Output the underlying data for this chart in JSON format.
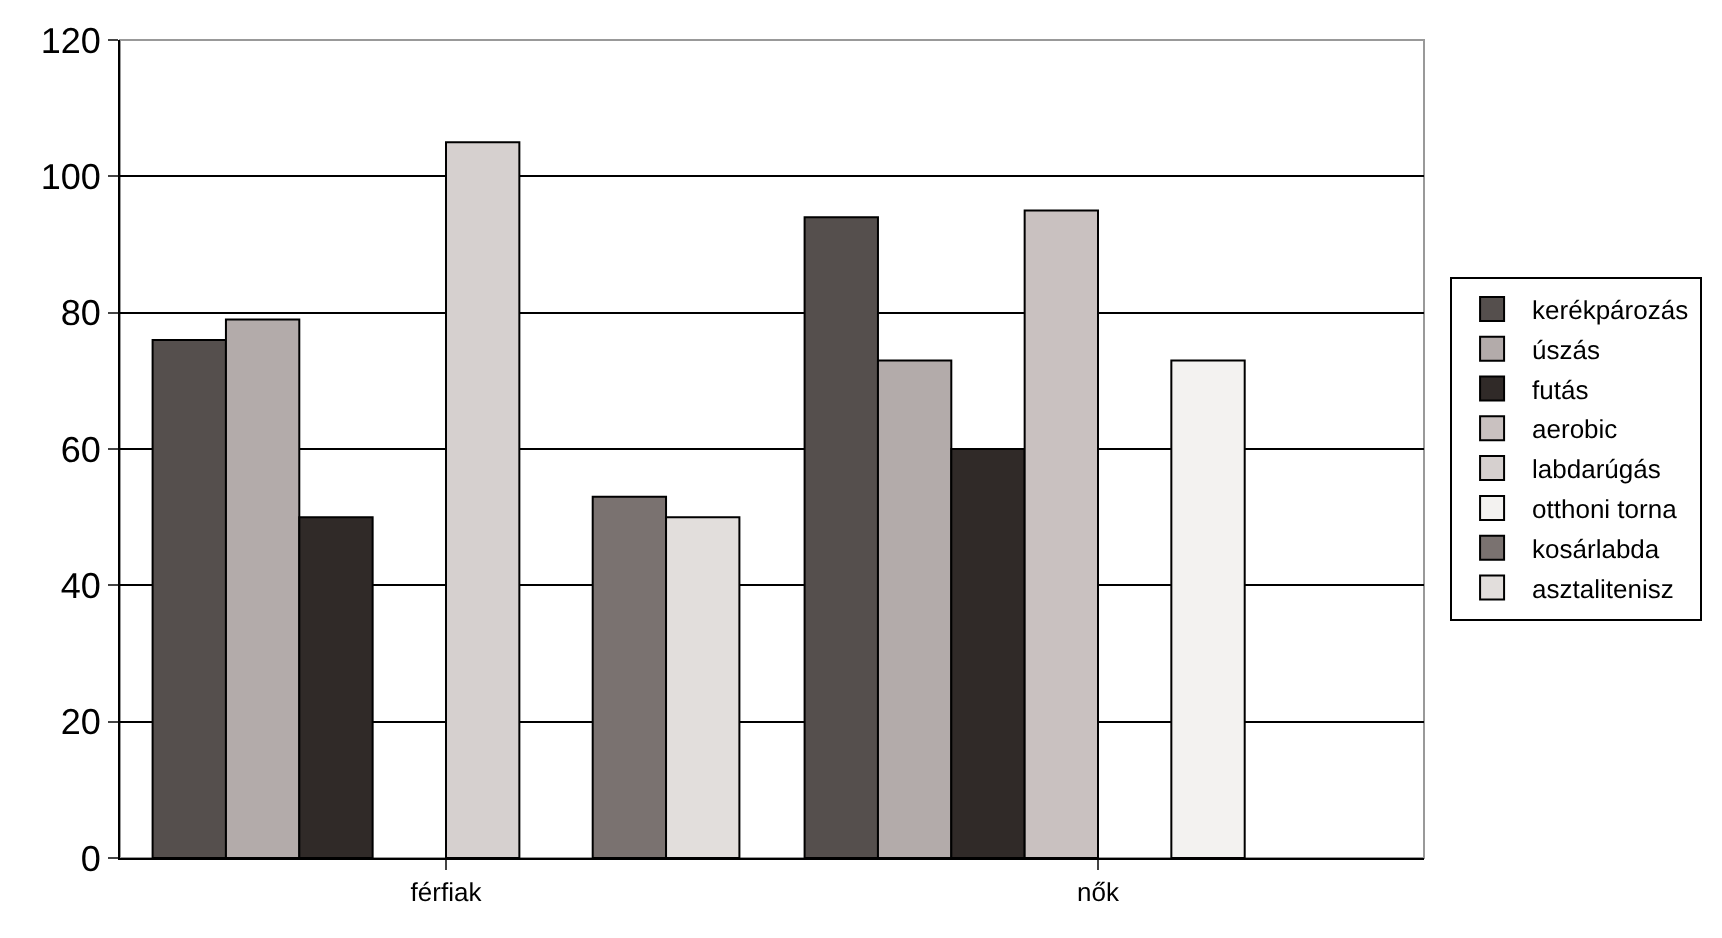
{
  "chart_data": {
    "type": "bar",
    "categories": [
      "férfiak",
      "nők"
    ],
    "series": [
      {
        "name": "kerékpározás",
        "color": "#554f4d",
        "values": [
          76,
          94
        ]
      },
      {
        "name": "úszás",
        "color": "#b3abaa",
        "values": [
          79,
          73
        ]
      },
      {
        "name": "futás",
        "color": "#302a28",
        "values": [
          50,
          60
        ]
      },
      {
        "name": "aerobic",
        "color": "#c9c1c0",
        "values": [
          null,
          95
        ]
      },
      {
        "name": "labdarúgás",
        "color": "#d6d0cf",
        "values": [
          105,
          null
        ]
      },
      {
        "name": "otthoni torna",
        "color": "#f3f2f0",
        "values": [
          null,
          73
        ]
      },
      {
        "name": "kosárlabda",
        "color": "#7a7270",
        "values": [
          53,
          null
        ]
      },
      {
        "name": "asztalitenisz",
        "color": "#e2dedc",
        "values": [
          50,
          null
        ]
      }
    ],
    "ylim": [
      0,
      120
    ],
    "yticks": [
      0,
      20,
      40,
      60,
      80,
      100,
      120
    ],
    "grid": "y",
    "legend": "right"
  }
}
